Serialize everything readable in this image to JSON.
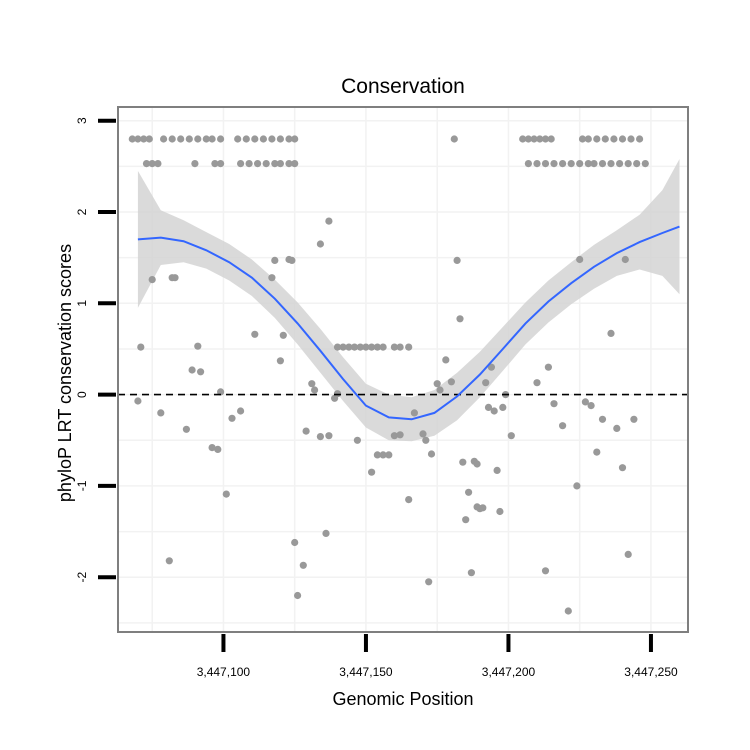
{
  "chart_data": {
    "type": "scatter",
    "title": "Conservation",
    "xlabel": "Genomic Position",
    "ylabel": "phyloP LRT conservation scores",
    "xlim": [
      3447063,
      3447263
    ],
    "ylim": [
      -2.6,
      3.15
    ],
    "x_ticks": [
      3447100,
      3447150,
      3447200,
      3447250
    ],
    "x_tick_labels": [
      "3,447,100",
      "3,447,150",
      "3,447,200",
      "3,447,250"
    ],
    "y_ticks": [
      -2,
      -1,
      0,
      1,
      2,
      3
    ],
    "y_tick_labels": [
      "-2",
      "-1",
      "0",
      "1",
      "2",
      "3"
    ],
    "grid": true,
    "reference_line": {
      "y": 0,
      "style": "dashed"
    },
    "colors": {
      "points": "#999999",
      "smooth": "#3366ff",
      "band": "#d3d3d3",
      "border": "#7f7f7f",
      "grid": "#f2f2f2"
    },
    "points": [
      [
        3447068,
        2.8
      ],
      [
        3447070,
        2.8
      ],
      [
        3447072,
        2.8
      ],
      [
        3447074,
        2.8
      ],
      [
        3447079,
        2.8
      ],
      [
        3447082,
        2.8
      ],
      [
        3447085,
        2.8
      ],
      [
        3447088,
        2.8
      ],
      [
        3447091,
        2.8
      ],
      [
        3447094,
        2.8
      ],
      [
        3447096,
        2.8
      ],
      [
        3447099,
        2.8
      ],
      [
        3447105,
        2.8
      ],
      [
        3447108,
        2.8
      ],
      [
        3447111,
        2.8
      ],
      [
        3447114,
        2.8
      ],
      [
        3447117,
        2.8
      ],
      [
        3447120,
        2.8
      ],
      [
        3447123,
        2.8
      ],
      [
        3447125,
        2.8
      ],
      [
        3447073,
        2.53
      ],
      [
        3447075,
        2.53
      ],
      [
        3447077,
        2.53
      ],
      [
        3447090,
        2.53
      ],
      [
        3447097,
        2.53
      ],
      [
        3447099,
        2.53
      ],
      [
        3447106,
        2.53
      ],
      [
        3447109,
        2.53
      ],
      [
        3447112,
        2.53
      ],
      [
        3447115,
        2.53
      ],
      [
        3447118,
        2.53
      ],
      [
        3447120,
        2.53
      ],
      [
        3447123,
        2.53
      ],
      [
        3447125,
        2.53
      ],
      [
        3447070,
        -0.07
      ],
      [
        3447071,
        0.52
      ],
      [
        3447075,
        1.26
      ],
      [
        3447078,
        -0.2
      ],
      [
        3447081,
        -1.82
      ],
      [
        3447082,
        1.28
      ],
      [
        3447083,
        1.28
      ],
      [
        3447087,
        -0.38
      ],
      [
        3447089,
        0.27
      ],
      [
        3447091,
        0.53
      ],
      [
        3447092,
        0.25
      ],
      [
        3447096,
        -0.58
      ],
      [
        3447098,
        -0.6
      ],
      [
        3447099,
        0.03
      ],
      [
        3447101,
        -1.09
      ],
      [
        3447103,
        -0.26
      ],
      [
        3447106,
        -0.18
      ],
      [
        3447111,
        0.66
      ],
      [
        3447117,
        1.28
      ],
      [
        3447118,
        1.47
      ],
      [
        3447120,
        0.37
      ],
      [
        3447121,
        0.65
      ],
      [
        3447123,
        1.48
      ],
      [
        3447124,
        1.47
      ],
      [
        3447126,
        -2.2
      ],
      [
        3447125,
        -1.62
      ],
      [
        3447128,
        -1.87
      ],
      [
        3447129,
        -0.4
      ],
      [
        3447131,
        0.12
      ],
      [
        3447132,
        0.05
      ],
      [
        3447134,
        -0.46
      ],
      [
        3447134,
        1.65
      ],
      [
        3447136,
        -1.52
      ],
      [
        3447137,
        -0.45
      ],
      [
        3447137,
        1.9
      ],
      [
        3447139,
        -0.04
      ],
      [
        3447140,
        0.01
      ],
      [
        3447140,
        0.52
      ],
      [
        3447142,
        0.52
      ],
      [
        3447144,
        0.52
      ],
      [
        3447146,
        0.52
      ],
      [
        3447148,
        0.52
      ],
      [
        3447150,
        0.52
      ],
      [
        3447152,
        0.52
      ],
      [
        3447154,
        0.52
      ],
      [
        3447156,
        0.52
      ],
      [
        3447160,
        0.52
      ],
      [
        3447162,
        0.52
      ],
      [
        3447165,
        0.52
      ],
      [
        3447147,
        -0.5
      ],
      [
        3447152,
        -0.85
      ],
      [
        3447154,
        -0.66
      ],
      [
        3447156,
        -0.66
      ],
      [
        3447158,
        -0.66
      ],
      [
        3447160,
        -0.45
      ],
      [
        3447162,
        -0.44
      ],
      [
        3447165,
        -1.15
      ],
      [
        3447167,
        -0.2
      ],
      [
        3447170,
        -0.43
      ],
      [
        3447171,
        -0.5
      ],
      [
        3447172,
        -2.05
      ],
      [
        3447173,
        -0.65
      ],
      [
        3447175,
        0.12
      ],
      [
        3447176,
        0.05
      ],
      [
        3447178,
        0.38
      ],
      [
        3447180,
        0.14
      ],
      [
        3447181,
        2.8
      ],
      [
        3447182,
        1.47
      ],
      [
        3447183,
        0.83
      ],
      [
        3447184,
        -0.74
      ],
      [
        3447185,
        -1.37
      ],
      [
        3447186,
        -1.07
      ],
      [
        3447187,
        -1.95
      ],
      [
        3447188,
        -0.73
      ],
      [
        3447189,
        -1.23
      ],
      [
        3447189,
        -0.76
      ],
      [
        3447190,
        -1.25
      ],
      [
        3447191,
        -1.24
      ],
      [
        3447192,
        0.13
      ],
      [
        3447193,
        -0.14
      ],
      [
        3447194,
        0.3
      ],
      [
        3447195,
        -0.18
      ],
      [
        3447196,
        -0.83
      ],
      [
        3447197,
        -1.28
      ],
      [
        3447198,
        -0.14
      ],
      [
        3447199,
        0.0
      ],
      [
        3447201,
        -0.45
      ],
      [
        3447205,
        2.8
      ],
      [
        3447207,
        2.8
      ],
      [
        3447209,
        2.8
      ],
      [
        3447211,
        2.8
      ],
      [
        3447213,
        2.8
      ],
      [
        3447215,
        2.8
      ],
      [
        3447226,
        2.8
      ],
      [
        3447228,
        2.8
      ],
      [
        3447231,
        2.8
      ],
      [
        3447234,
        2.8
      ],
      [
        3447237,
        2.8
      ],
      [
        3447240,
        2.8
      ],
      [
        3447243,
        2.8
      ],
      [
        3447246,
        2.8
      ],
      [
        3447207,
        2.53
      ],
      [
        3447210,
        2.53
      ],
      [
        3447213,
        2.53
      ],
      [
        3447216,
        2.53
      ],
      [
        3447219,
        2.53
      ],
      [
        3447222,
        2.53
      ],
      [
        3447225,
        2.53
      ],
      [
        3447228,
        2.53
      ],
      [
        3447230,
        2.53
      ],
      [
        3447233,
        2.53
      ],
      [
        3447236,
        2.53
      ],
      [
        3447239,
        2.53
      ],
      [
        3447242,
        2.53
      ],
      [
        3447245,
        2.53
      ],
      [
        3447248,
        2.53
      ],
      [
        3447210,
        0.13
      ],
      [
        3447213,
        -1.93
      ],
      [
        3447214,
        0.3
      ],
      [
        3447216,
        -0.1
      ],
      [
        3447219,
        -0.34
      ],
      [
        3447221,
        -2.37
      ],
      [
        3447224,
        -1.0
      ],
      [
        3447225,
        1.48
      ],
      [
        3447227,
        -0.08
      ],
      [
        3447229,
        -0.12
      ],
      [
        3447231,
        -0.63
      ],
      [
        3447233,
        -0.27
      ],
      [
        3447236,
        0.67
      ],
      [
        3447238,
        -0.37
      ],
      [
        3447240,
        -0.8
      ],
      [
        3447241,
        1.48
      ],
      [
        3447242,
        -1.75
      ],
      [
        3447244,
        -0.27
      ]
    ],
    "smooth_x": [
      3447070,
      3447078,
      3447086,
      3447094,
      3447102,
      3447110,
      3447118,
      3447126,
      3447134,
      3447142,
      3447150,
      3447158,
      3447166,
      3447174,
      3447182,
      3447190,
      3447198,
      3447206,
      3447214,
      3447222,
      3447230,
      3447238,
      3447246,
      3447254,
      3447260
    ],
    "smooth_y": [
      1.7,
      1.72,
      1.68,
      1.58,
      1.45,
      1.28,
      1.05,
      0.78,
      0.48,
      0.17,
      -0.12,
      -0.25,
      -0.27,
      -0.2,
      -0.02,
      0.22,
      0.5,
      0.78,
      1.02,
      1.22,
      1.4,
      1.55,
      1.67,
      1.77,
      1.84
    ],
    "smooth_lower": [
      0.95,
      1.42,
      1.45,
      1.38,
      1.25,
      1.08,
      0.84,
      0.55,
      0.24,
      -0.07,
      -0.36,
      -0.5,
      -0.51,
      -0.45,
      -0.28,
      -0.03,
      0.26,
      0.55,
      0.79,
      0.99,
      1.16,
      1.3,
      1.37,
      1.3,
      1.1
    ],
    "smooth_upper": [
      2.45,
      2.02,
      1.91,
      1.78,
      1.65,
      1.48,
      1.26,
      1.01,
      0.72,
      0.41,
      0.12,
      0.0,
      -0.03,
      0.05,
      0.24,
      0.47,
      0.74,
      1.01,
      1.25,
      1.45,
      1.64,
      1.8,
      1.97,
      2.24,
      2.58
    ]
  }
}
